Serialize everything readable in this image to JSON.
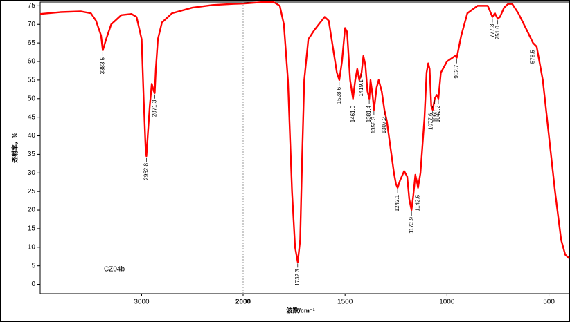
{
  "chart_data": {
    "type": "line",
    "title": "CZ04b",
    "x_label": "波数/cm⁻¹",
    "y_label": "透射率，%",
    "color": "#ff0000",
    "grid": false,
    "x_scale_change": 2000,
    "xlim": [
      4000,
      400
    ],
    "ylim": [
      -2.5,
      76
    ],
    "xticks": [
      3000,
      2000,
      1500,
      1000,
      500
    ],
    "yticks": [
      0,
      5,
      10,
      15,
      20,
      25,
      30,
      35,
      40,
      45,
      50,
      55,
      60,
      65,
      70,
      75
    ],
    "x": [
      4000,
      3800,
      3600,
      3500,
      3450,
      3400,
      3383,
      3350,
      3300,
      3200,
      3100,
      3050,
      3000,
      2980,
      2960,
      2952.8,
      2940,
      2920,
      2900,
      2880,
      2871,
      2860,
      2840,
      2800,
      2700,
      2500,
      2300,
      2100,
      2000,
      1900,
      1850,
      1820,
      1800,
      1780,
      1760,
      1745,
      1732,
      1720,
      1710,
      1700,
      1680,
      1650,
      1600,
      1580,
      1560,
      1540,
      1528,
      1515,
      1500,
      1490,
      1475,
      1461,
      1450,
      1440,
      1430,
      1419,
      1410,
      1400,
      1390,
      1381,
      1375,
      1365,
      1358,
      1345,
      1335,
      1320,
      1307,
      1295,
      1280,
      1260,
      1250,
      1242,
      1230,
      1210,
      1195,
      1185,
      1174,
      1165,
      1155,
      1145,
      1142,
      1130,
      1110,
      1100,
      1092,
      1085,
      1077,
      1070,
      1060,
      1050,
      1042,
      1030,
      1000,
      960,
      952,
      930,
      900,
      850,
      800,
      777,
      765,
      751,
      740,
      720,
      700,
      680,
      650,
      600,
      578,
      560,
      530,
      500,
      470,
      440,
      420,
      400
    ],
    "values": [
      72.8,
      73.3,
      73.5,
      73,
      71,
      67,
      63,
      66,
      70,
      72.5,
      72.8,
      72,
      66,
      50,
      36,
      34.5,
      40,
      48,
      54,
      52,
      51.5,
      58,
      66,
      70.5,
      73,
      74.5,
      75.2,
      75.5,
      75.6,
      76,
      76,
      75,
      70,
      55,
      25,
      10,
      6,
      12,
      35,
      55,
      66,
      68.5,
      72,
      71,
      64,
      57,
      55,
      60,
      69,
      68,
      55,
      50,
      55,
      58,
      55,
      57,
      61.5,
      59,
      52,
      50,
      55,
      51,
      47,
      53,
      55,
      52,
      47,
      44,
      38,
      30,
      27,
      26,
      28,
      30.5,
      29,
      23,
      20,
      24,
      29.5,
      27,
      26,
      30,
      45,
      57,
      59.5,
      58,
      48,
      47,
      50,
      51,
      50,
      57,
      60,
      61.5,
      61,
      67,
      73,
      75,
      75,
      72,
      73,
      71.5,
      72,
      74.5,
      75.5,
      75.5,
      73,
      67.5,
      65,
      64,
      55,
      40,
      25,
      12,
      8,
      7
    ],
    "peaks": [
      {
        "label": "3383.5",
        "x": 3383.5,
        "y": 63
      },
      {
        "label": "2952.8",
        "x": 2952.8,
        "y": 34.5
      },
      {
        "label": "2871.3",
        "x": 2871.3,
        "y": 51.5
      },
      {
        "label": "1732.3",
        "x": 1732.3,
        "y": 6
      },
      {
        "label": "1528.6",
        "x": 1528.6,
        "y": 55
      },
      {
        "label": "1461.0",
        "x": 1461.0,
        "y": 50
      },
      {
        "label": "1419.1",
        "x": 1419.1,
        "y": 57
      },
      {
        "label": "1381.4",
        "x": 1381.4,
        "y": 50
      },
      {
        "label": "1358.3",
        "x": 1358.3,
        "y": 47
      },
      {
        "label": "1307.2",
        "x": 1307.2,
        "y": 47
      },
      {
        "label": "1242.1",
        "x": 1242.1,
        "y": 26
      },
      {
        "label": "1173.9",
        "x": 1173.9,
        "y": 20
      },
      {
        "label": "1142.5",
        "x": 1142.5,
        "y": 26
      },
      {
        "label": "1077.6",
        "x": 1077.6,
        "y": 48
      },
      {
        "label": "1060.0",
        "x": 1060.0,
        "y": 50
      },
      {
        "label": "1042.2",
        "x": 1042.2,
        "y": 50
      },
      {
        "label": "952.7",
        "x": 952.7,
        "y": 61
      },
      {
        "label": "777.3",
        "x": 777.3,
        "y": 72
      },
      {
        "label": "751.0",
        "x": 751.0,
        "y": 71.5
      },
      {
        "label": "578.5",
        "x": 578.5,
        "y": 65
      }
    ]
  }
}
